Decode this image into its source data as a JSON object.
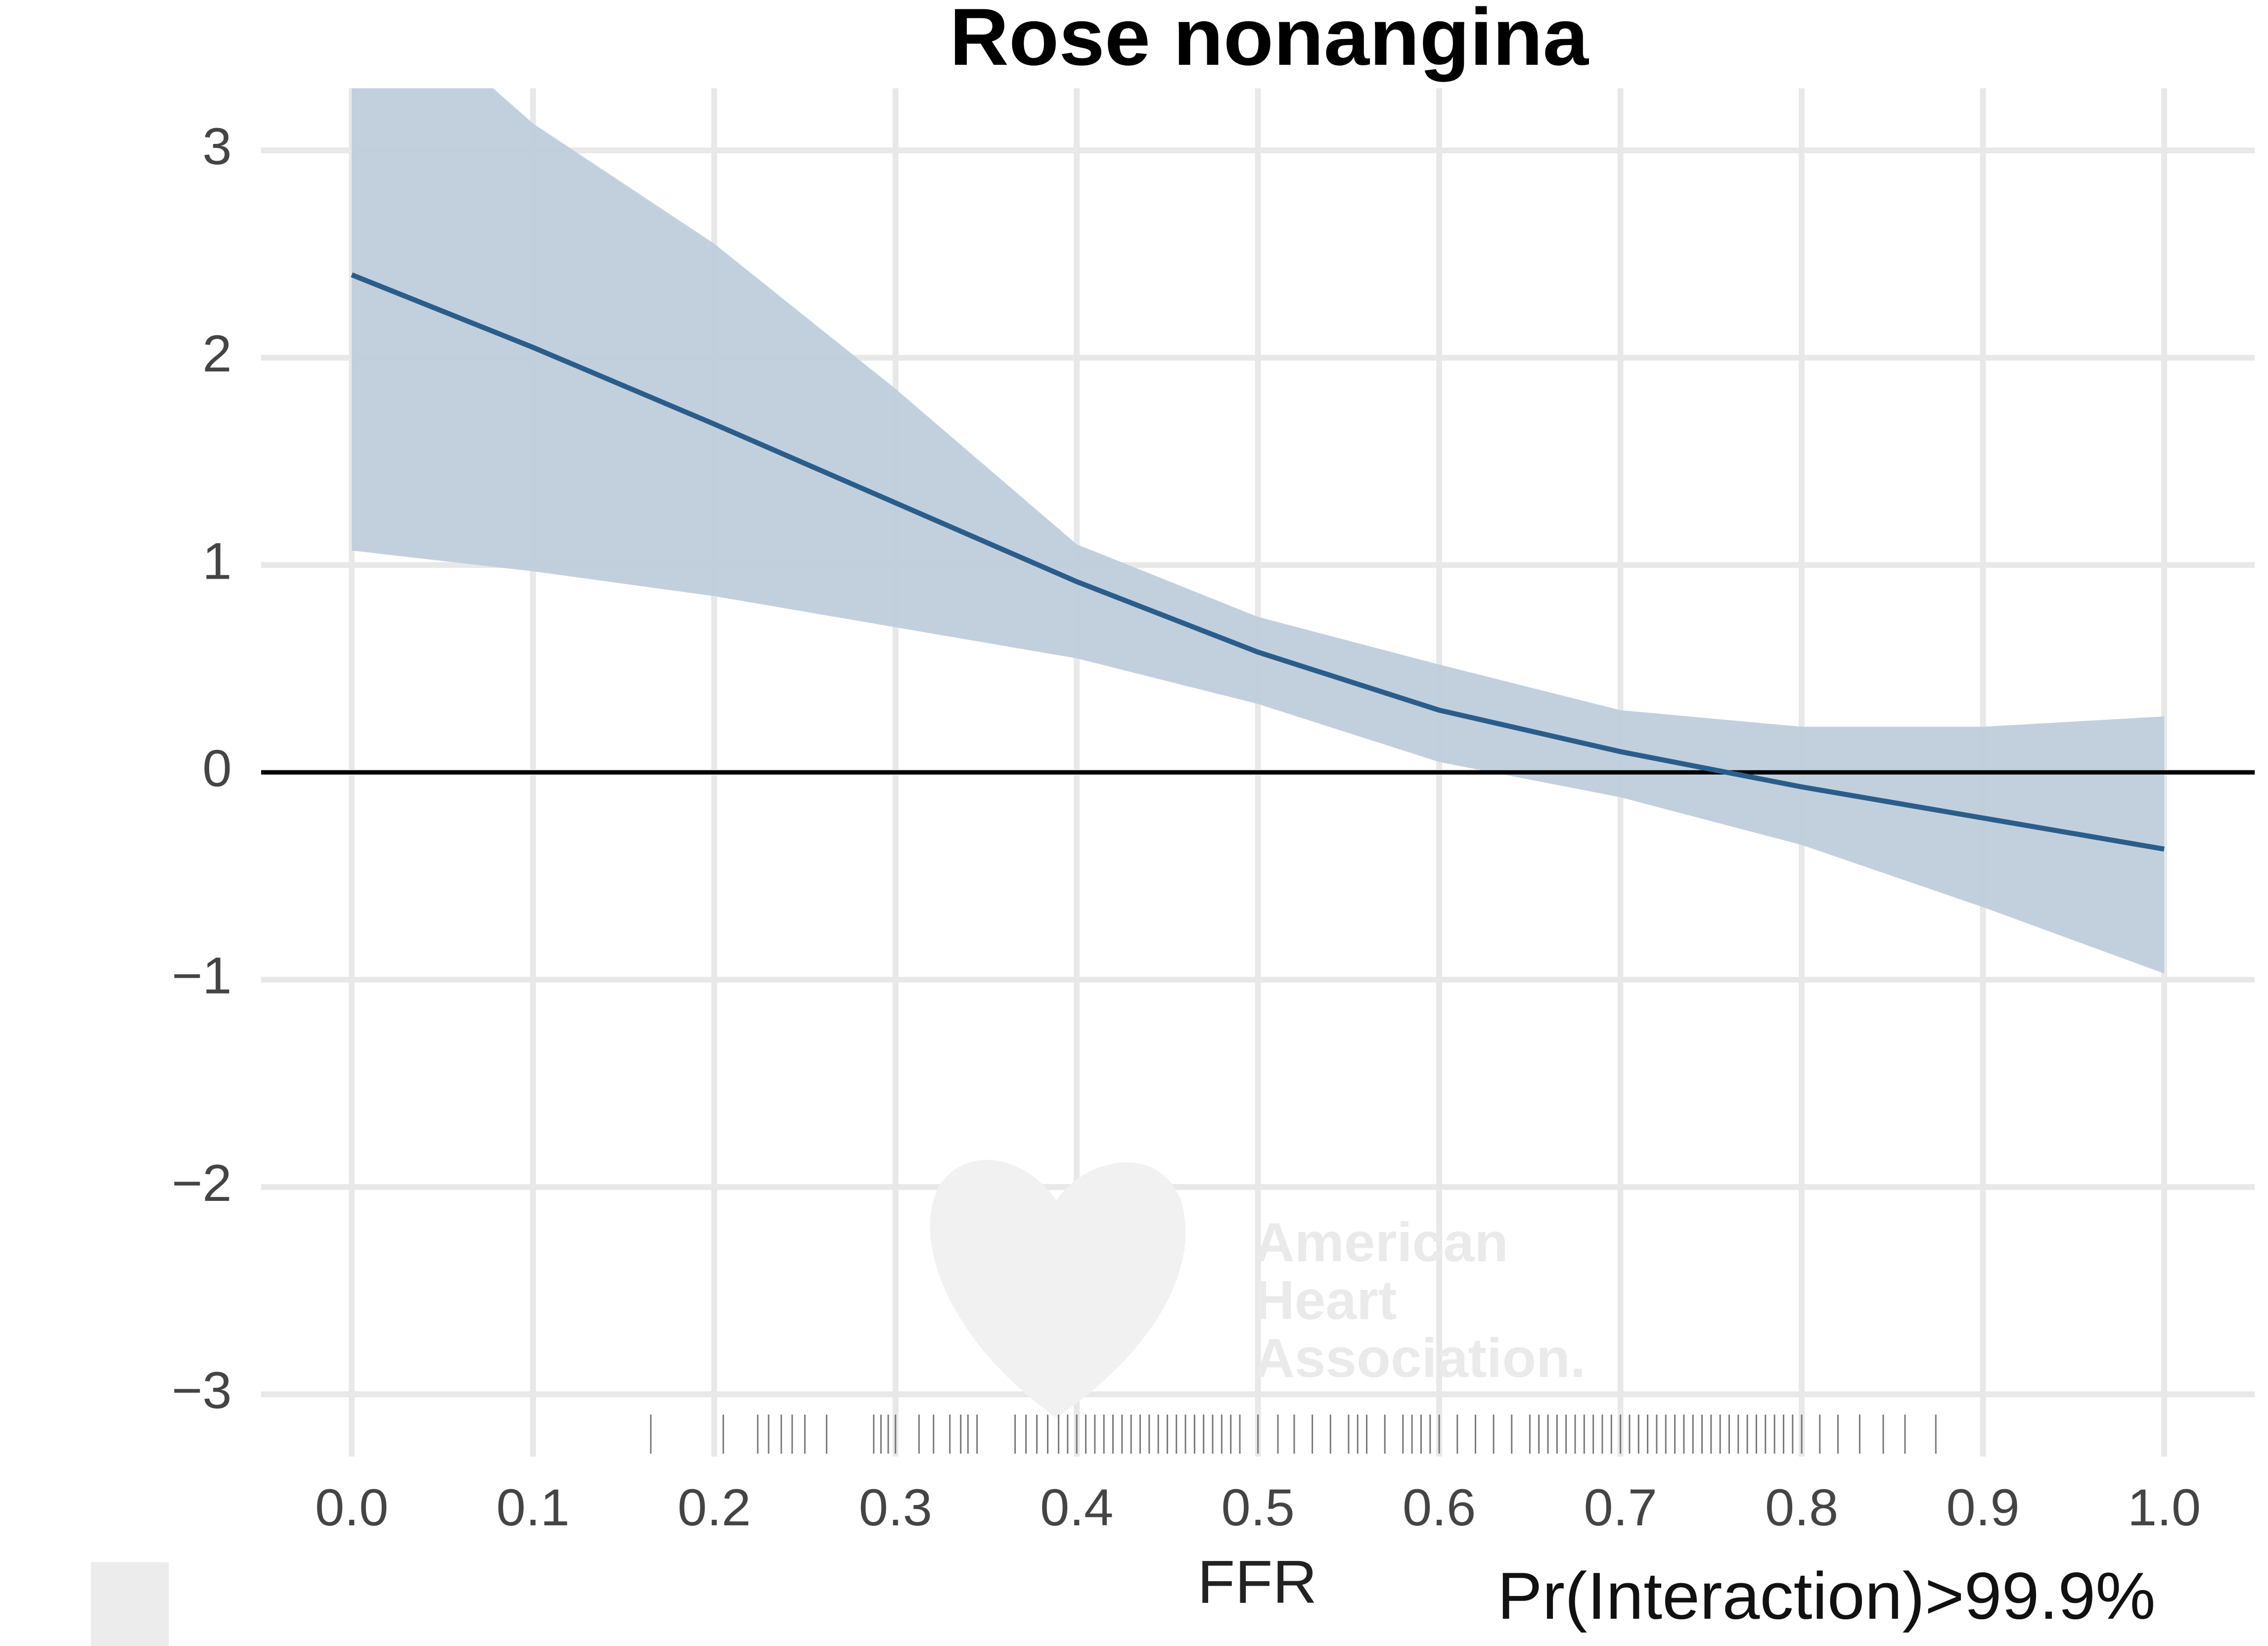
{
  "chart_data": {
    "type": "line",
    "title": "Rose nonangina",
    "x_label": "FFR",
    "annotation": "Pr(Interaction)>99.9%",
    "watermark": [
      "American",
      "Heart",
      "Association."
    ],
    "x": [
      0,
      0.1,
      0.2,
      0.3,
      0.4,
      0.5,
      0.6,
      0.7,
      0.8,
      0.9,
      1.0
    ],
    "line": {
      "color": "#2b5d8a",
      "values": [
        2.4,
        2.05,
        1.68,
        1.3,
        0.92,
        0.58,
        0.3,
        0.1,
        -0.07,
        -0.22,
        -0.37
      ]
    },
    "band": {
      "color": "#bfcedc",
      "upper": [
        3.9,
        3.13,
        2.55,
        1.85,
        1.1,
        0.75,
        0.52,
        0.3,
        0.22,
        0.22,
        0.27
      ],
      "lower": [
        1.07,
        0.97,
        0.85,
        0.7,
        0.55,
        0.33,
        0.05,
        -0.12,
        -0.35,
        -0.65,
        -0.97
      ]
    },
    "reference_line": 0,
    "rug": [
      0.165,
      0.205,
      0.224,
      0.23,
      0.237,
      0.243,
      0.25,
      0.262,
      0.288,
      0.292,
      0.296,
      0.3,
      0.313,
      0.321,
      0.33,
      0.336,
      0.34,
      0.345,
      0.366,
      0.372,
      0.378,
      0.384,
      0.39,
      0.395,
      0.4,
      0.405,
      0.41,
      0.415,
      0.42,
      0.425,
      0.43,
      0.435,
      0.44,
      0.445,
      0.45,
      0.455,
      0.46,
      0.465,
      0.47,
      0.475,
      0.48,
      0.485,
      0.49,
      0.5,
      0.511,
      0.52,
      0.53,
      0.54,
      0.55,
      0.555,
      0.56,
      0.57,
      0.58,
      0.585,
      0.59,
      0.595,
      0.6,
      0.61,
      0.62,
      0.63,
      0.64,
      0.65,
      0.655,
      0.66,
      0.665,
      0.67,
      0.675,
      0.68,
      0.685,
      0.69,
      0.695,
      0.7,
      0.705,
      0.71,
      0.715,
      0.72,
      0.725,
      0.73,
      0.735,
      0.74,
      0.745,
      0.75,
      0.755,
      0.76,
      0.765,
      0.77,
      0.775,
      0.78,
      0.785,
      0.79,
      0.795,
      0.8,
      0.81,
      0.82,
      0.832,
      0.845,
      0.857,
      0.874
    ],
    "xlim": [
      -0.05,
      1.05
    ],
    "ylim": [
      -3.3,
      3.3
    ],
    "xticks": [
      {
        "value": 0,
        "label": "0.0"
      },
      0.1,
      0.2,
      0.3,
      0.4,
      0.5,
      0.6,
      0.7,
      0.8,
      0.9,
      {
        "value": 1,
        "label": "1.0"
      }
    ],
    "yticks": [
      {
        "value": -3,
        "label": "−3"
      },
      {
        "value": -2,
        "label": "−2"
      },
      {
        "value": -1,
        "label": "−1"
      },
      0,
      1,
      2,
      3
    ],
    "grid": true
  }
}
